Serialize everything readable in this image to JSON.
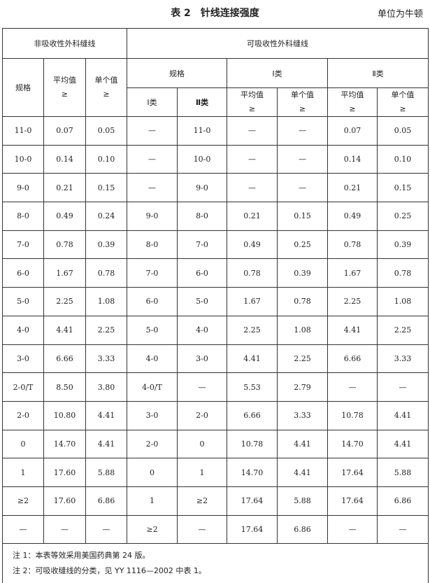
{
  "title": "表 2　针线连接强度",
  "unit": "单位为牛顿",
  "headers": {
    "nonabsorbable": "非吸收性外科缝线",
    "absorbable": "可吸收性外科缝线",
    "spec": "规格",
    "avg": "平均值 ≥",
    "single": "单个值 ≥",
    "abs_spec": "规格",
    "class1": "Ⅰ类",
    "class2": "Ⅱ类",
    "sub_class1": "Ⅰ类",
    "sub_class2": "Ⅱ类",
    "c1_avg": "平均值 ≥",
    "c1_single": "单个值 ≥",
    "c2_avg": "平均值 ≥",
    "c2_single": "单个值 ≥"
  },
  "rows": [
    [
      "11-0",
      "0.07",
      "0.05",
      "—",
      "11-0",
      "—",
      "—",
      "0.07",
      "0.05"
    ],
    [
      "10-0",
      "0.14",
      "0.10",
      "—",
      "10-0",
      "—",
      "—",
      "0.14",
      "0.10"
    ],
    [
      "9-0",
      "0.21",
      "0.15",
      "—",
      "9-0",
      "—",
      "—",
      "0.21",
      "0.15"
    ],
    [
      "8-0",
      "0.49",
      "0.24",
      "9-0",
      "8-0",
      "0.21",
      "0.15",
      "0.49",
      "0.25"
    ],
    [
      "7-0",
      "0.78",
      "0.39",
      "8-0",
      "7-0",
      "0.49",
      "0.25",
      "0.78",
      "0.39"
    ],
    [
      "6-0",
      "1.67",
      "0.78",
      "7-0",
      "6-0",
      "0.78",
      "0.39",
      "1.67",
      "0.78"
    ],
    [
      "5-0",
      "2.25",
      "1.08",
      "6-0",
      "5-0",
      "1.67",
      "0.78",
      "2.25",
      "1.08"
    ],
    [
      "4-0",
      "4.41",
      "2.25",
      "5-0",
      "4-0",
      "2.25",
      "1.08",
      "4.41",
      "2.25"
    ],
    [
      "3-0",
      "6.66",
      "3.33",
      "4-0",
      "3-0",
      "4.41",
      "2.25",
      "6.66",
      "3.33"
    ],
    [
      "2-0/T",
      "8.50",
      "3.80",
      "4-0/T",
      "—",
      "5.53",
      "2.79",
      "—",
      "—"
    ],
    [
      "2-0",
      "10.80",
      "4.41",
      "3-0",
      "2-0",
      "6.66",
      "3.33",
      "10.78",
      "4.41"
    ],
    [
      "0",
      "14.70",
      "4.41",
      "2-0",
      "0",
      "10.78",
      "4.41",
      "14.70",
      "4.41"
    ],
    [
      "1",
      "17.60",
      "5.88",
      "0",
      "1",
      "14.70",
      "4.41",
      "17.64",
      "5.88"
    ],
    [
      "≥2",
      "17.60",
      "6.86",
      "1",
      "≥2",
      "17.64",
      "5.88",
      "17.64",
      "6.86"
    ],
    [
      "—",
      "—",
      "—",
      "≥2",
      "—",
      "17.64",
      "6.86",
      "—",
      "—"
    ]
  ],
  "notes": [
    "注 1：本表等效采用美国药典第 24 版。",
    "注 2：可吸收缝线的分类，见 YY 1116—2002 中表 1。"
  ]
}
